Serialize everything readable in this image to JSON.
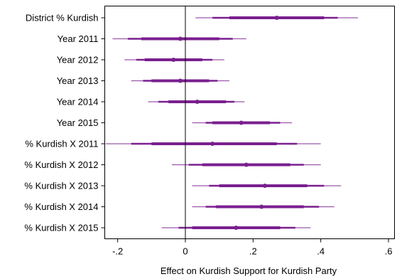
{
  "chart_data": {
    "type": "coefficient_plot",
    "xlabel": "Effect on Kurdish Support for Kurdish Party",
    "xlim": [
      -0.25,
      0.62
    ],
    "xticks": [
      -0.2,
      0,
      0.2,
      0.4,
      0.6
    ],
    "xtick_labels": [
      "-.2",
      "0",
      ".2",
      ".4",
      ".6"
    ],
    "reference_line": 0,
    "grid": false,
    "series_color": "#7a1f8f",
    "rows": [
      {
        "label": "District % Kurdish",
        "estimate": 0.27,
        "ci_inner": [
          0.13,
          0.41
        ],
        "ci_mid": [
          0.08,
          0.45
        ],
        "ci_outer": [
          0.03,
          0.51
        ]
      },
      {
        "label": "Year 2011",
        "estimate": -0.015,
        "ci_inner": [
          -0.13,
          0.1
        ],
        "ci_mid": [
          -0.17,
          0.14
        ],
        "ci_outer": [
          -0.215,
          0.18
        ]
      },
      {
        "label": "Year 2012",
        "estimate": -0.035,
        "ci_inner": [
          -0.12,
          0.05
        ],
        "ci_mid": [
          -0.145,
          0.08
        ],
        "ci_outer": [
          -0.18,
          0.115
        ]
      },
      {
        "label": "Year 2013",
        "estimate": -0.015,
        "ci_inner": [
          -0.1,
          0.07
        ],
        "ci_mid": [
          -0.125,
          0.095
        ],
        "ci_outer": [
          -0.16,
          0.13
        ]
      },
      {
        "label": "Year 2014",
        "estimate": 0.035,
        "ci_inner": [
          -0.05,
          0.12
        ],
        "ci_mid": [
          -0.08,
          0.145
        ],
        "ci_outer": [
          -0.11,
          0.175
        ]
      },
      {
        "label": "Year 2015",
        "estimate": 0.165,
        "ci_inner": [
          0.08,
          0.25
        ],
        "ci_mid": [
          0.06,
          0.28
        ],
        "ci_outer": [
          0.02,
          0.315
        ]
      },
      {
        "label": "% Kurdish X 2011",
        "estimate": 0.08,
        "ci_inner": [
          -0.1,
          0.27
        ],
        "ci_mid": [
          -0.16,
          0.33
        ],
        "ci_outer": [
          -0.235,
          0.4
        ]
      },
      {
        "label": "% Kurdish X 2012",
        "estimate": 0.18,
        "ci_inner": [
          0.05,
          0.31
        ],
        "ci_mid": [
          0.01,
          0.35
        ],
        "ci_outer": [
          -0.04,
          0.4
        ]
      },
      {
        "label": "% Kurdish X 2013",
        "estimate": 0.235,
        "ci_inner": [
          0.1,
          0.36
        ],
        "ci_mid": [
          0.07,
          0.41
        ],
        "ci_outer": [
          0.02,
          0.46
        ]
      },
      {
        "label": "% Kurdish X 2014",
        "estimate": 0.225,
        "ci_inner": [
          0.09,
          0.35
        ],
        "ci_mid": [
          0.06,
          0.395
        ],
        "ci_outer": [
          0.02,
          0.44
        ]
      },
      {
        "label": "% Kurdish X 2015",
        "estimate": 0.15,
        "ci_inner": [
          0.02,
          0.28
        ],
        "ci_mid": [
          -0.02,
          0.325
        ],
        "ci_outer": [
          -0.07,
          0.37
        ]
      }
    ]
  }
}
